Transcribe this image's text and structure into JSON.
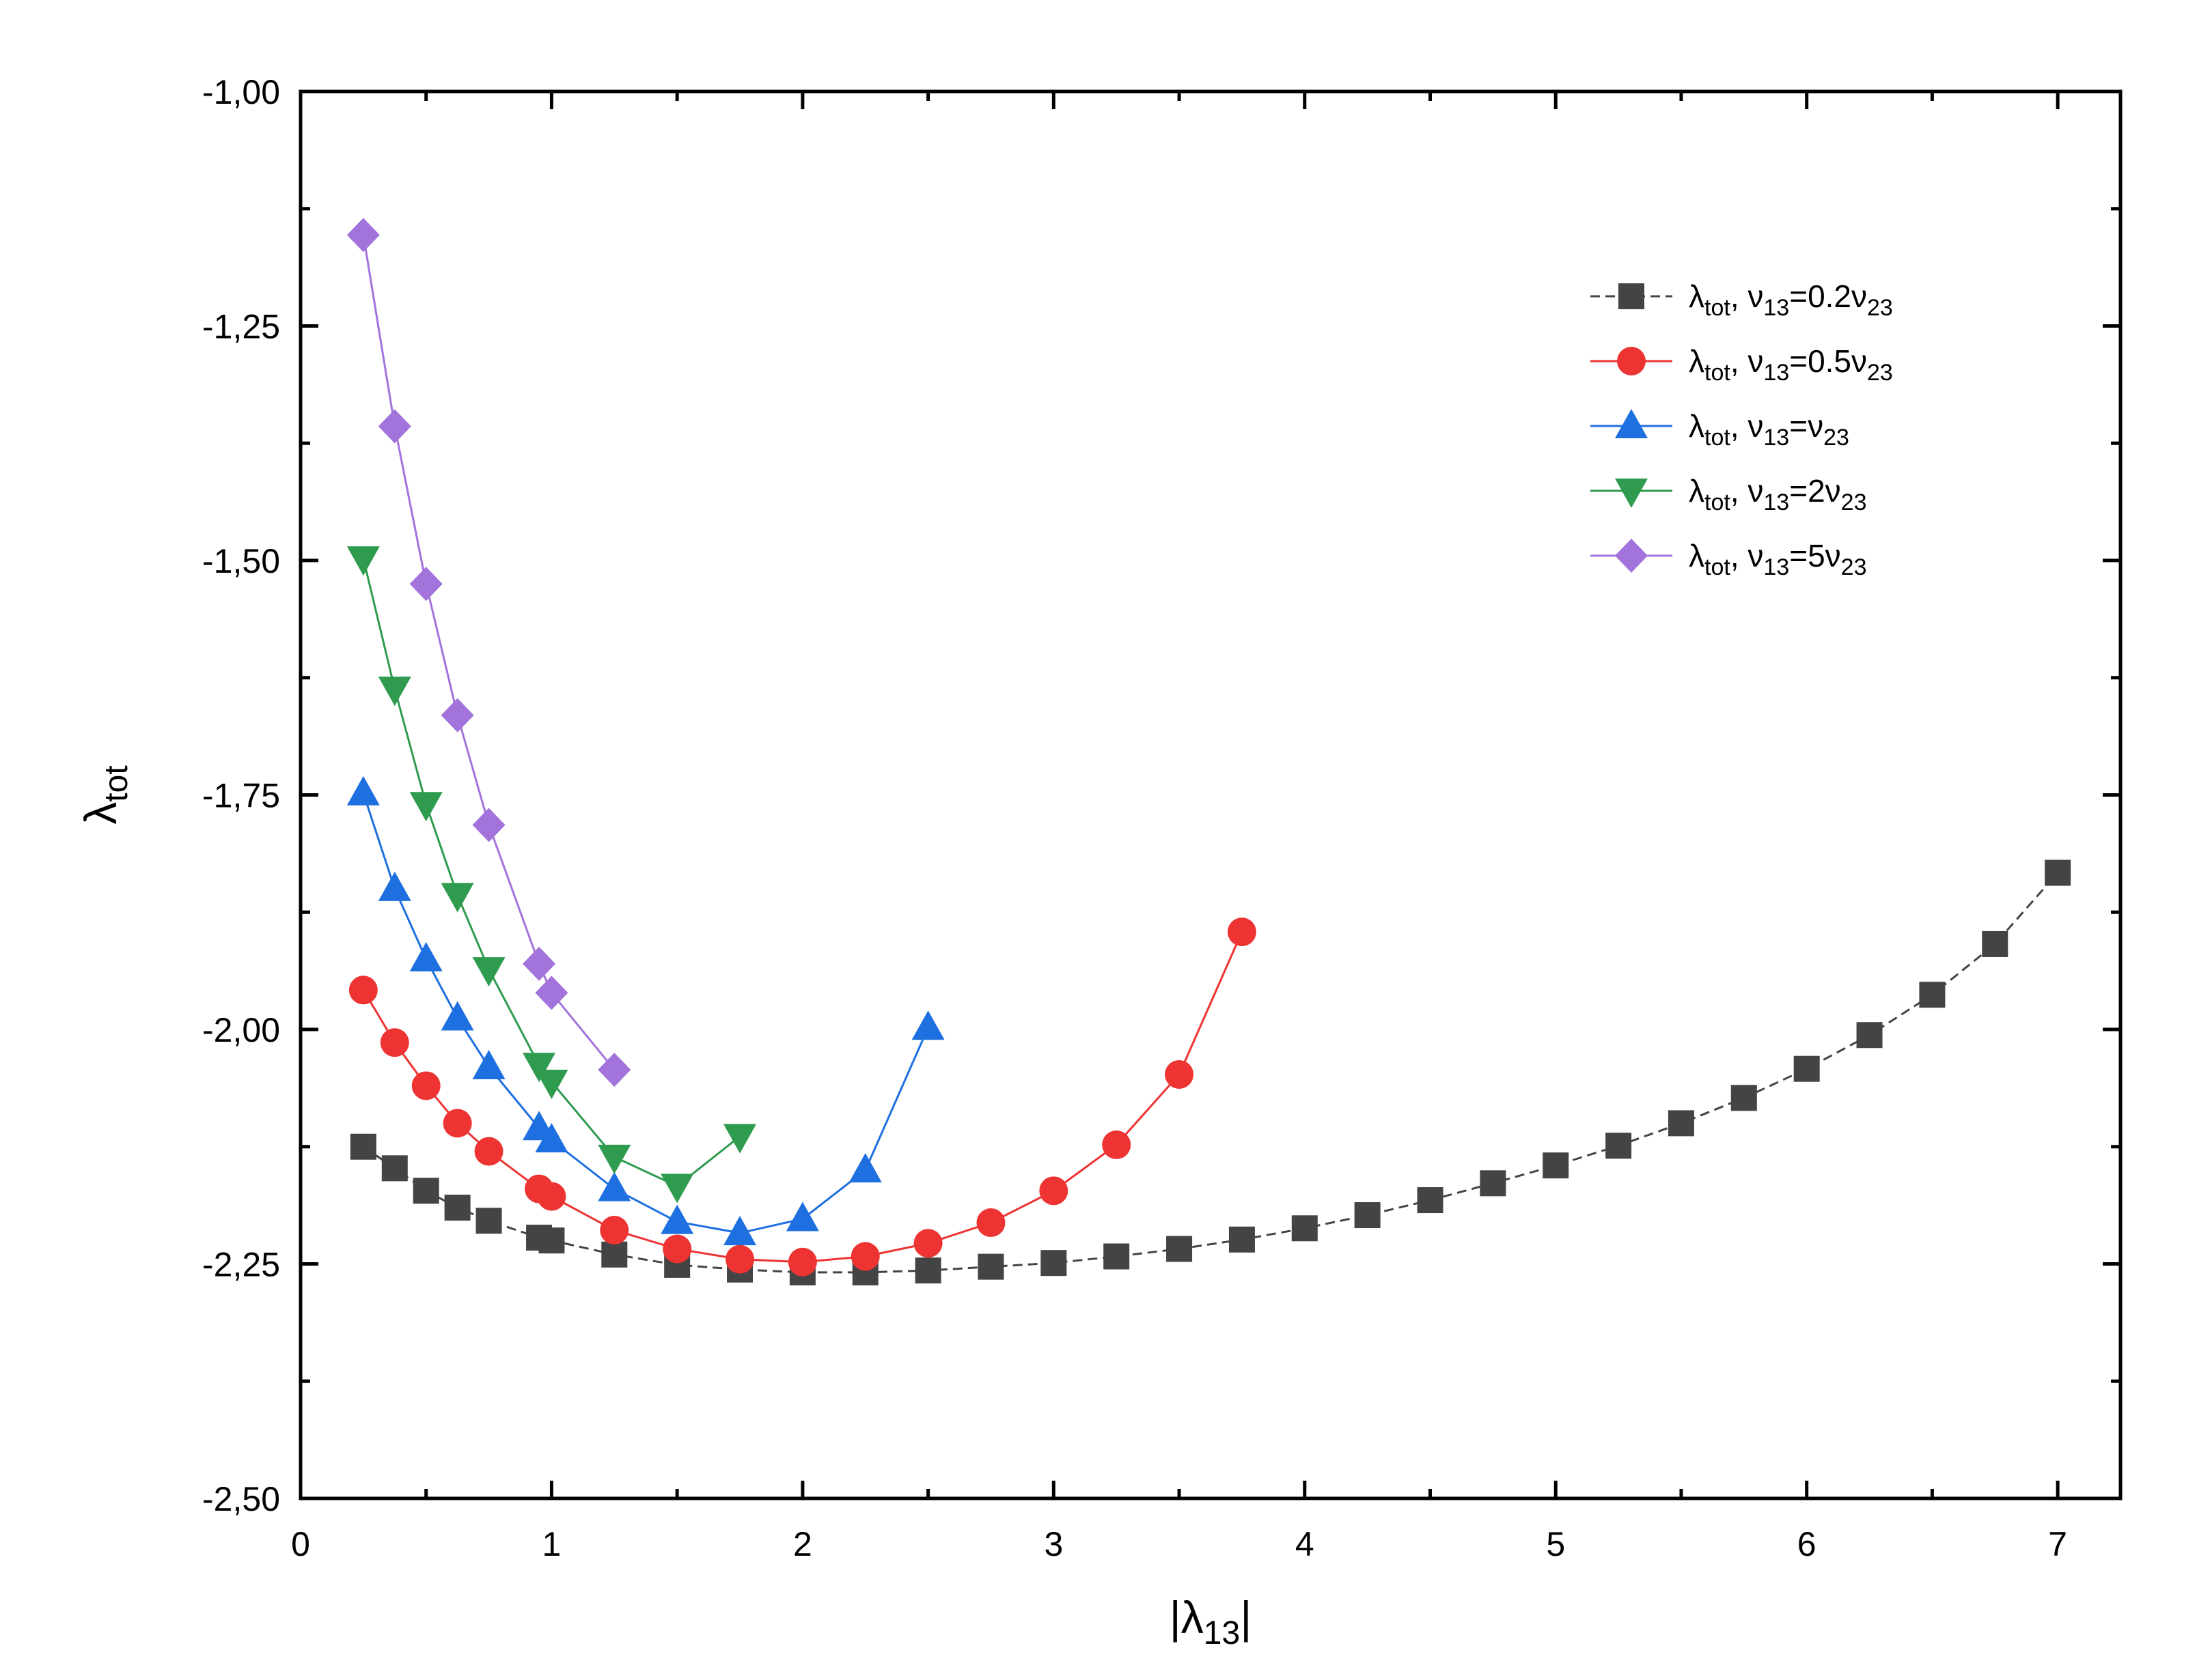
{
  "chart_data": {
    "type": "line",
    "title": "",
    "xlabel": {
      "pre": "|λ",
      "sub": "13",
      "post": "|"
    },
    "ylabel": {
      "pre": "λ",
      "sub": "tot"
    },
    "xlim": [
      0,
      7.25
    ],
    "ylim": [
      -2.5,
      -1.0
    ],
    "xticks": [
      0,
      1,
      2,
      3,
      4,
      5,
      6,
      7
    ],
    "xtick_labels": [
      "0",
      "1",
      "2",
      "3",
      "4",
      "5",
      "6",
      "7"
    ],
    "yticks": [
      -2.5,
      -2.25,
      -2.0,
      -1.75,
      -1.5,
      -1.25,
      -1.0
    ],
    "ytick_labels": [
      "-2,50",
      "-2,25",
      "-2,00",
      "-1,75",
      "-1,50",
      "-1,25",
      "-1,00"
    ],
    "grid": false,
    "legend_position": "top-right",
    "series": [
      {
        "name": "λtot, ν13=0.2ν23",
        "legend": {
          "a": "λ",
          "a_sub": "tot",
          "b": ", ν",
          "b_sub": "13",
          "c": "=0.2ν",
          "c_sub": "23"
        },
        "color": "#444444",
        "marker": "square",
        "dashed": true,
        "x": [
          0.25,
          0.375,
          0.5,
          0.625,
          0.75,
          0.95,
          1.0,
          1.25,
          1.5,
          1.75,
          2.0,
          2.25,
          2.5,
          2.75,
          3.0,
          3.25,
          3.5,
          3.75,
          4.0,
          4.25,
          4.5,
          4.75,
          5.0,
          5.25,
          5.5,
          5.75,
          6.0,
          6.25,
          6.5,
          6.75,
          7.0
        ],
        "y": [
          -2.125,
          -2.148,
          -2.172,
          -2.19,
          -2.204,
          -2.222,
          -2.225,
          -2.24,
          -2.251,
          -2.256,
          -2.259,
          -2.259,
          -2.257,
          -2.253,
          -2.249,
          -2.242,
          -2.234,
          -2.224,
          -2.212,
          -2.198,
          -2.182,
          -2.164,
          -2.145,
          -2.124,
          -2.1,
          -2.073,
          -2.042,
          -2.006,
          -1.963,
          -1.909,
          -1.833
        ]
      },
      {
        "name": "λtot, ν13=0.5ν23",
        "legend": {
          "a": "λ",
          "a_sub": "tot",
          "b": ", ν",
          "b_sub": "13",
          "c": "=0.5ν",
          "c_sub": "23"
        },
        "color": "#ee3333",
        "marker": "circle",
        "dashed": false,
        "x": [
          0.25,
          0.375,
          0.5,
          0.625,
          0.75,
          0.95,
          1.0,
          1.25,
          1.5,
          1.75,
          2.0,
          2.25,
          2.5,
          2.75,
          3.0,
          3.25,
          3.5,
          3.75
        ],
        "y": [
          -1.958,
          -2.014,
          -2.06,
          -2.1,
          -2.13,
          -2.17,
          -2.178,
          -2.214,
          -2.234,
          -2.245,
          -2.248,
          -2.242,
          -2.228,
          -2.206,
          -2.172,
          -2.123,
          -2.048,
          -1.896
        ]
      },
      {
        "name": "λtot, ν13=ν23",
        "legend": {
          "a": "λ",
          "a_sub": "tot",
          "b": ", ν",
          "b_sub": "13",
          "c": "=ν",
          "c_sub": "23"
        },
        "color": "#1e6fe0",
        "marker": "triangle-up",
        "dashed": false,
        "x": [
          0.25,
          0.375,
          0.5,
          0.625,
          0.75,
          0.95,
          1.0,
          1.25,
          1.5,
          1.75,
          2.0,
          2.25,
          2.5
        ],
        "y": [
          -1.748,
          -1.85,
          -1.925,
          -1.988,
          -2.04,
          -2.105,
          -2.118,
          -2.17,
          -2.205,
          -2.217,
          -2.202,
          -2.15,
          -1.998
        ]
      },
      {
        "name": "λtot, ν13=2ν23",
        "legend": {
          "a": "λ",
          "a_sub": "tot",
          "b": ", ν",
          "b_sub": "13",
          "c": "=2ν",
          "c_sub": "23"
        },
        "color": "#2e9b4f",
        "marker": "triangle-down",
        "dashed": false,
        "x": [
          0.25,
          0.375,
          0.5,
          0.625,
          0.75,
          0.95,
          1.0,
          1.25,
          1.5,
          1.75
        ],
        "y": [
          -1.498,
          -1.637,
          -1.76,
          -1.857,
          -1.936,
          -2.038,
          -2.056,
          -2.136,
          -2.167,
          -2.114
        ]
      },
      {
        "name": "λtot, ν13=5ν23",
        "legend": {
          "a": "λ",
          "a_sub": "tot",
          "b": ", ν",
          "b_sub": "13",
          "c": "=5ν",
          "c_sub": "23"
        },
        "color": "#a373dc",
        "marker": "diamond",
        "dashed": false,
        "x": [
          0.25,
          0.375,
          0.5,
          0.625,
          0.75,
          0.95,
          1.0,
          1.25
        ],
        "y": [
          -1.153,
          -1.357,
          -1.525,
          -1.665,
          -1.782,
          -1.93,
          -1.961,
          -2.043
        ]
      }
    ]
  }
}
